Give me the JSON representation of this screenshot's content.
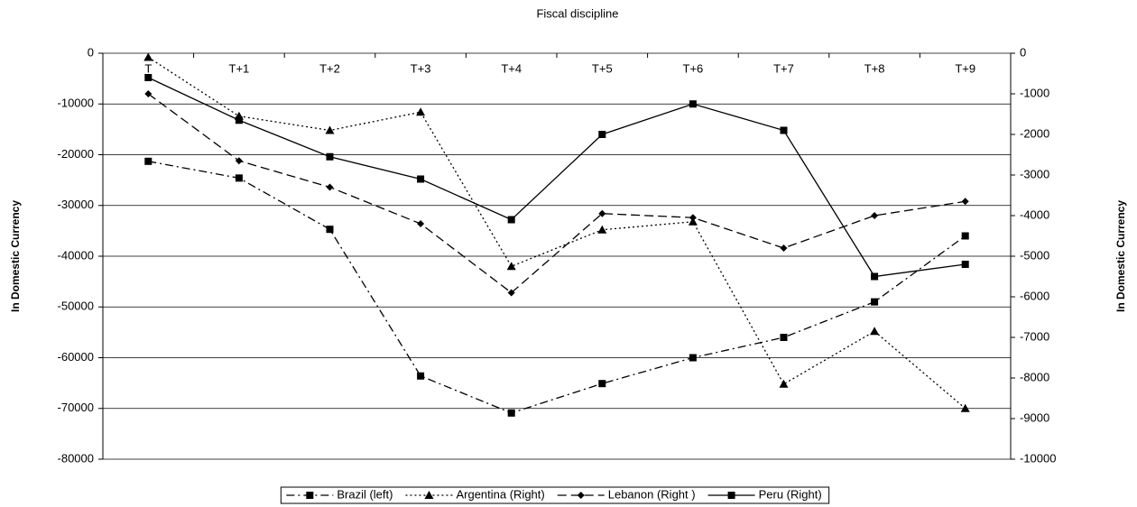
{
  "chart_data": {
    "type": "line",
    "title": "Fiscal discipline",
    "y_label": "In Domestic Currency",
    "y2_label": "In Domestic Currency",
    "categories": [
      "T",
      "T+1",
      "T+2",
      "T+3",
      "T+4",
      "T+5",
      "T+6",
      "T+7",
      "T+8",
      "T+9"
    ],
    "series": [
      {
        "name": "Brazil (left)",
        "color": "#000000",
        "marker": "square",
        "dash": "dash-dot",
        "values": [
          -21300,
          -24600,
          -34700,
          -63600,
          -70900,
          -65100,
          -60000,
          -56000,
          -49000,
          -36000
        ]
      },
      {
        "name": "Argentina (Right)",
        "color": "#000000",
        "marker": "triangle",
        "dash": "dotted",
        "axis": "y2",
        "values": [
          -100,
          -1550,
          -1900,
          -1450,
          -5250,
          -4350,
          -4150,
          -8150,
          -6850,
          -8750
        ]
      },
      {
        "name": "Lebanon (Right )",
        "color": "#000000",
        "marker": "diamond",
        "dash": "dashed",
        "axis": "y2",
        "values": [
          -1000,
          -2650,
          -3300,
          -4200,
          -5900,
          -3950,
          -4050,
          -4800,
          -4000,
          -3650
        ]
      },
      {
        "name": "Peru (Right)",
        "color": "#000000",
        "marker": "square",
        "dash": "solid",
        "axis": "y2",
        "values": [
          -600,
          -1650,
          -2550,
          -3100,
          -4100,
          -2000,
          -1250,
          -1900,
          -5500,
          -5200
        ]
      }
    ],
    "ylim": [
      -80000,
      0
    ],
    "yticks": [
      0,
      -10000,
      -20000,
      -30000,
      -40000,
      -50000,
      -60000,
      -70000,
      -80000
    ],
    "y2lim": [
      -10000,
      0
    ],
    "y2ticks": [
      0,
      -1000,
      -2000,
      -3000,
      -4000,
      -5000,
      -6000,
      -7000,
      -8000,
      -9000,
      -10000
    ],
    "grid": true,
    "legend": "bottom"
  }
}
